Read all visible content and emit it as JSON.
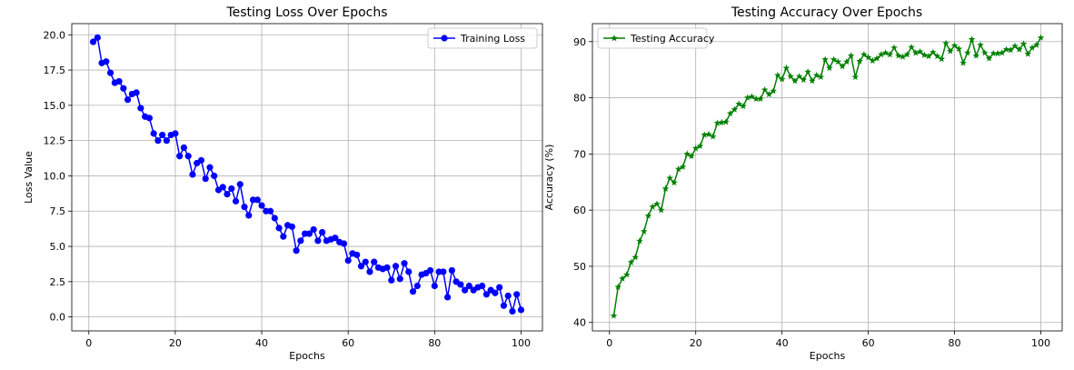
{
  "chart_data": [
    {
      "type": "line",
      "title": "Testing Loss Over Epochs",
      "xlabel": "Epochs",
      "ylabel": "Loss Value",
      "xlim": [
        -3.95,
        104.95
      ],
      "ylim": [
        -0.99,
        20.79
      ],
      "xticks": [
        0,
        20,
        40,
        60,
        80,
        100
      ],
      "yticks": [
        0.0,
        2.5,
        5.0,
        7.5,
        10.0,
        12.5,
        15.0,
        17.5,
        20.0
      ],
      "ytick_labels": [
        "0.0",
        "2.5",
        "5.0",
        "7.5",
        "10.0",
        "12.5",
        "15.0",
        "17.5",
        "20.0"
      ],
      "grid": true,
      "legend_position": "upper right",
      "color": "#0000ff",
      "marker": "circle",
      "series": [
        {
          "name": "Training Loss",
          "x": [
            1,
            2,
            3,
            4,
            5,
            6,
            7,
            8,
            9,
            10,
            11,
            12,
            13,
            14,
            15,
            16,
            17,
            18,
            19,
            20,
            21,
            22,
            23,
            24,
            25,
            26,
            27,
            28,
            29,
            30,
            31,
            32,
            33,
            34,
            35,
            36,
            37,
            38,
            39,
            40,
            41,
            42,
            43,
            44,
            45,
            46,
            47,
            48,
            49,
            50,
            51,
            52,
            53,
            54,
            55,
            56,
            57,
            58,
            59,
            60,
            61,
            62,
            63,
            64,
            65,
            66,
            67,
            68,
            69,
            70,
            71,
            72,
            73,
            74,
            75,
            76,
            77,
            78,
            79,
            80,
            81,
            82,
            83,
            84,
            85,
            86,
            87,
            88,
            89,
            90,
            91,
            92,
            93,
            94,
            95,
            96,
            97,
            98,
            99,
            100
          ],
          "values": [
            19.5,
            19.8,
            18.0,
            18.1,
            17.3,
            16.6,
            16.7,
            16.2,
            15.4,
            15.8,
            15.9,
            14.8,
            14.2,
            14.1,
            13.0,
            12.5,
            12.9,
            12.5,
            12.9,
            13.0,
            11.4,
            12.0,
            11.4,
            10.1,
            10.9,
            11.1,
            9.8,
            10.6,
            10.0,
            9.0,
            9.2,
            8.7,
            9.1,
            8.2,
            9.4,
            7.8,
            7.2,
            8.3,
            8.3,
            7.9,
            7.5,
            7.5,
            7.0,
            6.3,
            5.7,
            6.5,
            6.4,
            4.7,
            5.4,
            5.9,
            5.9,
            6.2,
            5.4,
            6.0,
            5.4,
            5.5,
            5.6,
            5.3,
            5.2,
            4.0,
            4.5,
            4.4,
            3.6,
            3.9,
            3.2,
            3.9,
            3.5,
            3.4,
            3.5,
            2.6,
            3.6,
            2.7,
            3.8,
            3.2,
            1.8,
            2.2,
            3.0,
            3.1,
            3.3,
            2.2,
            3.2,
            3.2,
            1.4,
            3.3,
            2.5,
            2.3,
            1.9,
            2.2,
            1.9,
            2.1,
            2.2,
            1.6,
            1.9,
            1.7,
            2.1,
            0.8,
            1.5,
            0.4,
            1.6,
            0.5
          ]
        }
      ]
    },
    {
      "type": "line",
      "title": "Testing Accuracy Over Epochs",
      "xlabel": "Epochs",
      "ylabel": "Accuracy (%)",
      "xlim": [
        -3.95,
        104.95
      ],
      "ylim": [
        38.5,
        93.2
      ],
      "xticks": [
        0,
        20,
        40,
        60,
        80,
        100
      ],
      "yticks": [
        40,
        50,
        60,
        70,
        80,
        90
      ],
      "ytick_labels": [
        "40",
        "50",
        "60",
        "70",
        "80",
        "90"
      ],
      "grid": true,
      "legend_position": "upper left",
      "color": "#008000",
      "marker": "star",
      "series": [
        {
          "name": "Testing Accuracy",
          "x": [
            1,
            2,
            3,
            4,
            5,
            6,
            7,
            8,
            9,
            10,
            11,
            12,
            13,
            14,
            15,
            16,
            17,
            18,
            19,
            20,
            21,
            22,
            23,
            24,
            25,
            26,
            27,
            28,
            29,
            30,
            31,
            32,
            33,
            34,
            35,
            36,
            37,
            38,
            39,
            40,
            41,
            42,
            43,
            44,
            45,
            46,
            47,
            48,
            49,
            50,
            51,
            52,
            53,
            54,
            55,
            56,
            57,
            58,
            59,
            60,
            61,
            62,
            63,
            64,
            65,
            66,
            67,
            68,
            69,
            70,
            71,
            72,
            73,
            74,
            75,
            76,
            77,
            78,
            79,
            80,
            81,
            82,
            83,
            84,
            85,
            86,
            87,
            88,
            89,
            90,
            91,
            92,
            93,
            94,
            95,
            96,
            97,
            98,
            99,
            100
          ],
          "values": [
            41.2,
            46.3,
            47.8,
            48.5,
            50.7,
            51.6,
            54.5,
            56.2,
            59.0,
            60.6,
            61.1,
            60.0,
            63.8,
            65.7,
            64.9,
            67.3,
            67.7,
            70.0,
            69.6,
            71.0,
            71.4,
            73.4,
            73.5,
            73.1,
            75.5,
            75.6,
            75.7,
            77.2,
            77.9,
            78.9,
            78.5,
            80.0,
            80.2,
            79.8,
            79.8,
            81.4,
            80.6,
            81.2,
            84.0,
            83.3,
            85.3,
            83.8,
            83.0,
            83.8,
            83.2,
            84.6,
            83.0,
            84.0,
            83.7,
            86.8,
            85.3,
            86.8,
            86.4,
            85.6,
            86.4,
            87.5,
            83.7,
            86.5,
            87.7,
            87.2,
            86.6,
            87.0,
            87.7,
            88.0,
            87.7,
            88.9,
            87.5,
            87.3,
            87.7,
            89.0,
            88.0,
            88.2,
            87.6,
            87.4,
            88.1,
            87.4,
            86.9,
            89.7,
            88.3,
            89.3,
            88.7,
            86.2,
            88.0,
            90.4,
            87.5,
            89.4,
            88.0,
            87.0,
            87.9,
            87.9,
            88.0,
            88.6,
            88.5,
            89.2,
            88.6,
            89.6,
            87.8,
            88.9,
            89.4,
            90.7
          ]
        }
      ]
    }
  ]
}
